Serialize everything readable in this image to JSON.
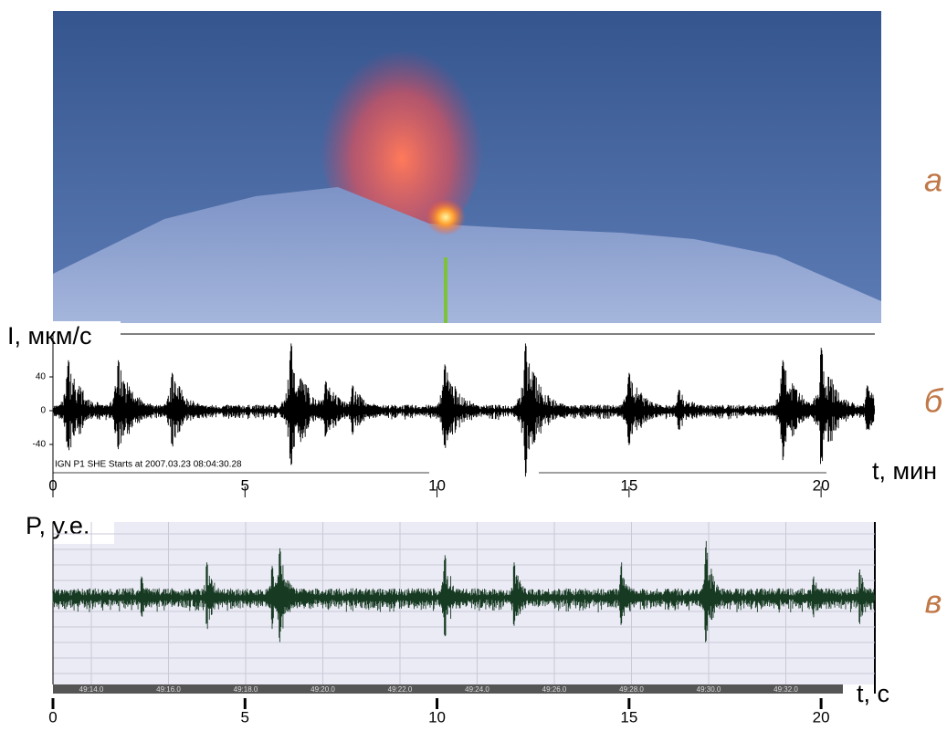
{
  "labels": {
    "photo": "а",
    "seismogram": "б",
    "infrasound": "в"
  },
  "seismogram": {
    "y_label": "I, мкм/с",
    "ylim": [
      -80,
      80
    ],
    "yticks": [
      40,
      0,
      -40
    ],
    "station": "IGN P1 SHE  Starts at 2007.03.23 08:04:30.28",
    "x_label": "t, мин",
    "xlim": [
      0,
      21.4
    ],
    "xticks": [
      0,
      5,
      10,
      15,
      20
    ],
    "bursts": [
      {
        "t": 0.4,
        "amp": 60
      },
      {
        "t": 1.7,
        "amp": 60
      },
      {
        "t": 3.1,
        "amp": 45
      },
      {
        "t": 6.2,
        "amp": 80
      },
      {
        "t": 7.1,
        "amp": 35
      },
      {
        "t": 7.8,
        "amp": 30
      },
      {
        "t": 10.2,
        "amp": 55
      },
      {
        "t": 12.3,
        "amp": 80
      },
      {
        "t": 15.0,
        "amp": 45
      },
      {
        "t": 16.3,
        "amp": 25
      },
      {
        "t": 19.0,
        "amp": 60
      },
      {
        "t": 20.0,
        "amp": 75
      },
      {
        "t": 21.2,
        "amp": 30
      }
    ]
  },
  "infrasound": {
    "y_label": "P, у.е.",
    "ylim": [
      -1,
      1
    ],
    "x_label": "t, с",
    "xlim": [
      0,
      21.4
    ],
    "xticks": [
      0,
      5,
      10,
      15,
      20
    ],
    "time_labels": [
      "49:14.0",
      "49:16.0",
      "49:18.0",
      "49:20.0",
      "49:22.0",
      "49:24.0",
      "49:26.0",
      "49:28.0",
      "49:30.0",
      "49:32.0"
    ],
    "bursts": [
      {
        "t": 2.3,
        "amp": 0.3
      },
      {
        "t": 4.0,
        "amp": 0.5
      },
      {
        "t": 5.7,
        "amp": 0.45
      },
      {
        "t": 5.9,
        "amp": 0.7
      },
      {
        "t": 10.2,
        "amp": 0.6
      },
      {
        "t": 12.0,
        "amp": 0.5
      },
      {
        "t": 14.8,
        "amp": 0.5
      },
      {
        "t": 17.0,
        "amp": 0.8
      },
      {
        "t": 19.8,
        "amp": 0.3
      },
      {
        "t": 21.0,
        "amp": 0.4
      }
    ]
  }
}
